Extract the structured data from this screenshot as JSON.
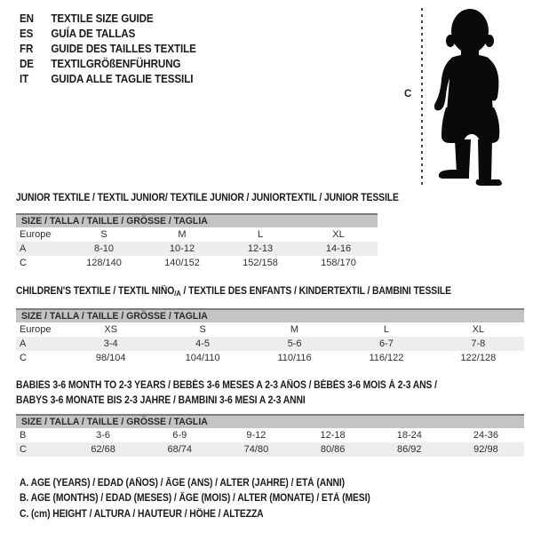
{
  "header": {
    "languages": [
      {
        "code": "EN",
        "title": "TEXTILE SIZE GUIDE"
      },
      {
        "code": "ES",
        "title": "GUÍA DE TALLAS"
      },
      {
        "code": "FR",
        "title": "GUIDE DES TAILLES TEXTILE"
      },
      {
        "code": "DE",
        "title": "TEXTILGRÖßENFÜHRUNG"
      },
      {
        "code": "IT",
        "title": "GUIDA ALLE TAGLIE TESSILI"
      }
    ]
  },
  "figure": {
    "measure_label": "C",
    "description": "toddler-silhouette"
  },
  "colors": {
    "bar_bg": "#c4c4c4",
    "bar_border": "#7d7d7d",
    "row_shade": "#ededed",
    "silhouette": "#0a0a0a"
  },
  "tables": [
    {
      "title": "JUNIOR TEXTILE / TEXTIL JUNIOR/ TEXTILE JUNIOR / JUNIORTEXTIL / JUNIOR TESSILE",
      "size_header": "SIZE / TALLA / TAILLE / GRÖSSE / TAGLIA",
      "rows": [
        {
          "label": "Europe",
          "values": [
            "S",
            "M",
            "L",
            "XL"
          ]
        },
        {
          "label": "A",
          "values": [
            "8-10",
            "10-12",
            "12-13",
            "14-16"
          ]
        },
        {
          "label": "C",
          "values": [
            "128/140",
            "140/152",
            "152/158",
            "158/170"
          ]
        }
      ]
    },
    {
      "title_parts": {
        "before": "CHILDREN'S TEXTILE / TEXTIL NIÑO",
        "sub": "/A",
        "after": " / TEXTILE DES ENFANTS / KINDERTEXTIL / BAMBINI TESSILE"
      },
      "size_header": "SIZE / TALLA / TAILLE / GRÖSSE / TAGLIA",
      "rows": [
        {
          "label": "Europe",
          "values": [
            "XS",
            "S",
            "M",
            "L",
            "XL"
          ]
        },
        {
          "label": "A",
          "values": [
            "3-4",
            "4-5",
            "5-6",
            "6-7",
            "7-8"
          ]
        },
        {
          "label": "C",
          "values": [
            "98/104",
            "104/110",
            "110/116",
            "116/122",
            "122/128"
          ]
        }
      ]
    },
    {
      "title_line1": "BABIES 3-6 MONTH TO 2-3 YEARS / BEBÉS 3-6 MESES A 2-3 AÑOS / BÉBÉS 3-6 MOIS À 2-3 ANS /",
      "title_line2": "BABYS 3-6 MONATE BIS 2-3 JAHRE / BAMBINI 3-6 MESI A 2-3 ANNI",
      "size_header": "SIZE / TALLA / TAILLE / GRÖSSE / TAGLIA",
      "rows": [
        {
          "label": "B",
          "values": [
            "3-6",
            "6-9",
            "9-12",
            "12-18",
            "18-24",
            "24-36"
          ]
        },
        {
          "label": "C",
          "values": [
            "62/68",
            "68/74",
            "74/80",
            "80/86",
            "86/92",
            "92/98"
          ]
        }
      ]
    }
  ],
  "notes": [
    "A. AGE (YEARS) / EDAD (AÑOS) / ÂGE (ANS) / ALTER (JAHRE) / ETÀ (ANNI)",
    "B. AGE (MONTHS) / EDAD (MESES) / ÂGE (MOIS) / ALTER (MONATE) / ETÀ (MESI)",
    "C. (cm) HEIGHT / ALTURA / HAUTEUR / HÖHE / ALTEZZA"
  ]
}
